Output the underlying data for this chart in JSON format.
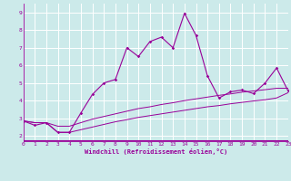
{
  "xlabel": "Windchill (Refroidissement éolien,°C)",
  "bg_color": "#cceaea",
  "grid_color": "#ffffff",
  "line_color": "#990099",
  "x_min": 0,
  "x_max": 23,
  "y_min": 1.7,
  "y_max": 9.5,
  "yticks": [
    2,
    3,
    4,
    5,
    6,
    7,
    8,
    9
  ],
  "xticks": [
    0,
    1,
    2,
    3,
    4,
    5,
    6,
    7,
    8,
    9,
    10,
    11,
    12,
    13,
    14,
    15,
    16,
    17,
    18,
    19,
    20,
    21,
    22,
    23
  ],
  "series1_x": [
    0,
    1,
    2,
    3,
    4,
    5,
    6,
    7,
    8,
    9,
    10,
    11,
    12,
    13,
    14,
    15,
    16,
    17,
    18,
    19,
    20,
    21,
    22,
    23
  ],
  "series1_y": [
    2.85,
    2.6,
    2.75,
    2.2,
    2.2,
    3.3,
    4.35,
    5.0,
    5.2,
    7.0,
    6.5,
    7.35,
    7.6,
    7.0,
    8.95,
    7.7,
    5.4,
    4.15,
    4.5,
    4.6,
    4.4,
    5.0,
    5.85,
    4.55
  ],
  "series2_x": [
    0,
    1,
    2,
    3,
    4,
    5,
    6,
    7,
    8,
    9,
    10,
    11,
    12,
    13,
    14,
    15,
    16,
    17,
    18,
    19,
    20,
    21,
    22,
    23
  ],
  "series2_y": [
    2.85,
    2.75,
    2.75,
    2.55,
    2.55,
    2.75,
    2.95,
    3.1,
    3.25,
    3.4,
    3.55,
    3.65,
    3.78,
    3.88,
    4.0,
    4.1,
    4.2,
    4.3,
    4.38,
    4.48,
    4.55,
    4.62,
    4.7,
    4.7
  ],
  "series3_x": [
    0,
    1,
    2,
    3,
    4,
    5,
    6,
    7,
    8,
    9,
    10,
    11,
    12,
    13,
    14,
    15,
    16,
    17,
    18,
    19,
    20,
    21,
    22,
    23
  ],
  "series3_y": [
    2.85,
    2.75,
    2.75,
    2.2,
    2.2,
    2.35,
    2.5,
    2.65,
    2.8,
    2.92,
    3.05,
    3.15,
    3.25,
    3.35,
    3.45,
    3.55,
    3.65,
    3.72,
    3.82,
    3.9,
    3.98,
    4.05,
    4.15,
    4.45
  ]
}
